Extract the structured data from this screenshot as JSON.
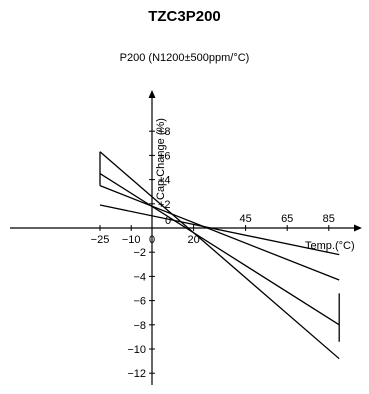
{
  "chart_data": {
    "type": "line",
    "title": "TZC3P200",
    "subtitle": "P200 (N1200±500ppm/°C)",
    "xlabel": "Temp.(°C)",
    "ylabel": "Cap.Change (%)",
    "x_ticks": [
      -25,
      -10,
      0,
      20,
      45,
      65,
      85
    ],
    "y_ticks": [
      -12,
      -10,
      -8,
      -6,
      -4,
      -2,
      2,
      4,
      6,
      8
    ],
    "x_tick_labels": [
      "−25",
      "−10",
      "0",
      "20",
      "45",
      "65",
      "85"
    ],
    "y_tick_labels": [
      "−12",
      "−10",
      "−8",
      "−6",
      "−4",
      "−2",
      "+2",
      "+4",
      "+6",
      "+8"
    ],
    "x_zero_label": "0",
    "series": [
      {
        "x": [
          -25,
          90
        ],
        "y": [
          6.3,
          -10.8
        ]
      },
      {
        "x": [
          -25,
          90
        ],
        "y": [
          4.5,
          -8.0
        ]
      },
      {
        "x": [
          -25,
          90
        ],
        "y": [
          3.5,
          -4.3
        ]
      },
      {
        "x": [
          -25,
          90
        ],
        "y": [
          1.9,
          -2.2
        ]
      }
    ],
    "brackets": [
      {
        "x": -25,
        "y_top": 6.3,
        "y_bottom": 3.5
      },
      {
        "x": 90,
        "y_top": -5.4,
        "y_bottom": -9.4
      }
    ]
  }
}
